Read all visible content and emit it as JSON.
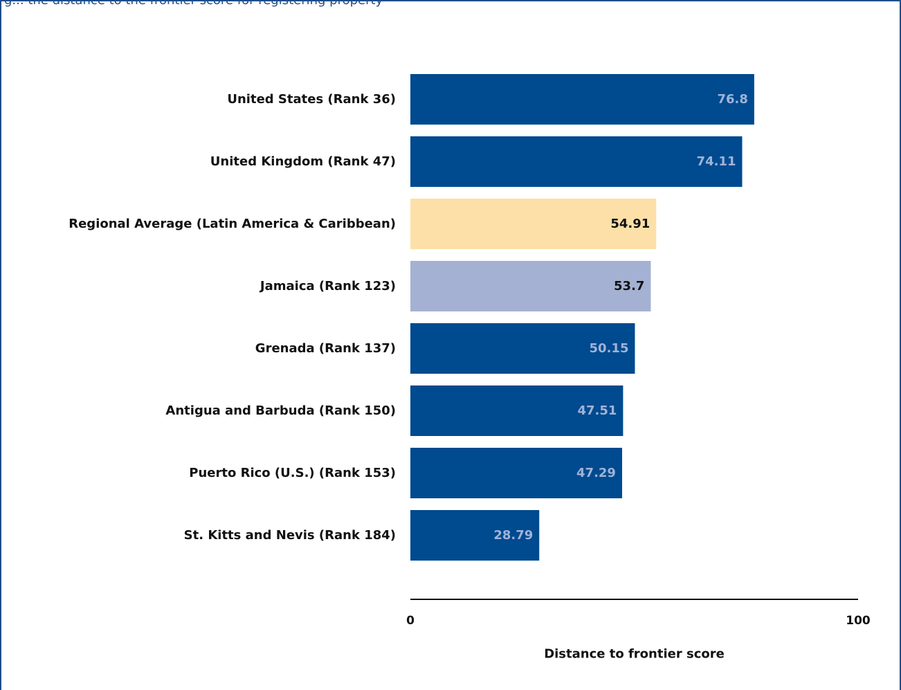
{
  "header": {
    "text": "g... the distance to the frontier score for registering property"
  },
  "colors": {
    "bar_default": "#004a8f",
    "bar_regional": "#fde0a8",
    "bar_highlight": "#a4b1d2",
    "label_on_dark": "#9fb4d8",
    "label_on_light": "#111111",
    "axis": "#111111"
  },
  "chart_data": {
    "type": "bar",
    "orientation": "horizontal",
    "categories": [
      "United States (Rank 36)",
      "United Kingdom (Rank 47)",
      "Regional Average (Latin America & Caribbean)",
      "Jamaica (Rank 123)",
      "Grenada (Rank 137)",
      "Antigua and Barbuda (Rank 150)",
      "Puerto Rico (U.S.) (Rank 153)",
      "St. Kitts and Nevis (Rank 184)"
    ],
    "values": [
      76.8,
      74.11,
      54.91,
      53.7,
      50.15,
      47.51,
      47.29,
      28.79
    ],
    "value_labels": [
      "76.8",
      "74.11",
      "54.91",
      "53.7",
      "50.15",
      "47.51",
      "47.29",
      "28.79"
    ],
    "bar_styles": [
      "default",
      "default",
      "regional",
      "highlight",
      "default",
      "default",
      "default",
      "default"
    ],
    "xlim": [
      0,
      100
    ],
    "x_ticks": [
      "0",
      "100"
    ],
    "xlabel": "Distance to frontier score",
    "ylabel": "",
    "title": "",
    "grid": false,
    "legend": "none"
  }
}
